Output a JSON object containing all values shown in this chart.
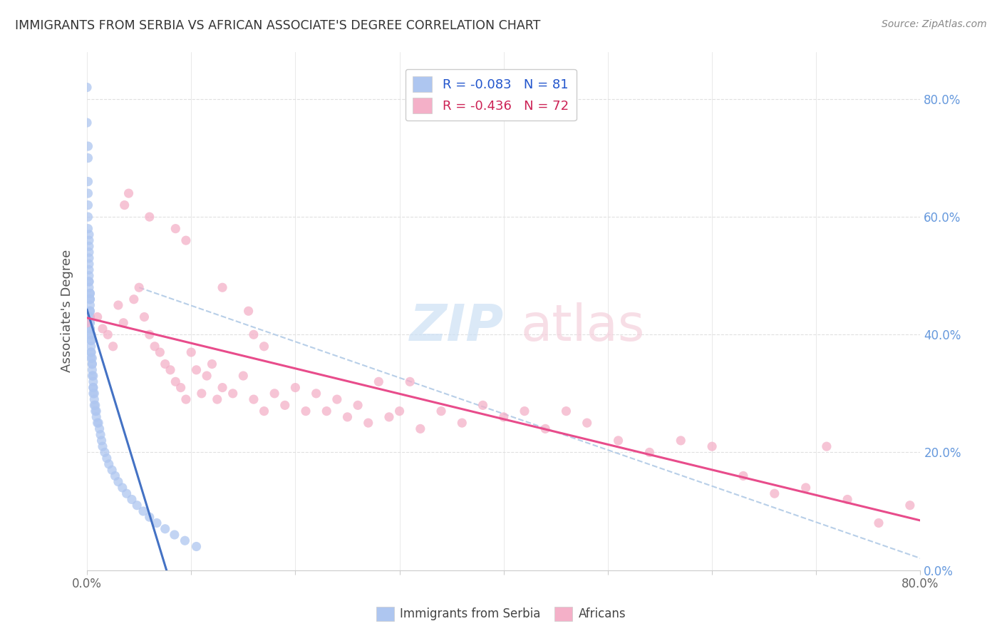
{
  "title": "IMMIGRANTS FROM SERBIA VS AFRICAN ASSOCIATE'S DEGREE CORRELATION CHART",
  "source": "Source: ZipAtlas.com",
  "ylabel": "Associate's Degree",
  "legend_r_labels": [
    "R = -0.083   N = 81",
    "R = -0.436   N = 72"
  ],
  "legend_bottom_labels": [
    "Immigrants from Serbia",
    "Africans"
  ],
  "serbia_scatter_color": "#aec6f0",
  "africa_scatter_color": "#f4b0c8",
  "serbia_line_color": "#4472c4",
  "africa_line_color": "#e84c8b",
  "dashed_line_color": "#b8cfe8",
  "watermark_zip_color": "#cce0f5",
  "watermark_atlas_color": "#f5d0dc",
  "legend_blue_color": "#2255cc",
  "legend_pink_color": "#cc2255",
  "right_tick_color": "#6699dd",
  "title_color": "#333333",
  "source_color": "#888888",
  "ylabel_color": "#555555",
  "grid_color": "#e0e0e0",
  "serbia_x": [
    0.0,
    0.0,
    0.001,
    0.001,
    0.001,
    0.001,
    0.001,
    0.001,
    0.001,
    0.002,
    0.002,
    0.002,
    0.002,
    0.002,
    0.002,
    0.002,
    0.002,
    0.002,
    0.002,
    0.002,
    0.003,
    0.003,
    0.003,
    0.003,
    0.003,
    0.003,
    0.003,
    0.003,
    0.003,
    0.003,
    0.003,
    0.003,
    0.003,
    0.003,
    0.004,
    0.004,
    0.004,
    0.004,
    0.004,
    0.004,
    0.004,
    0.005,
    0.005,
    0.005,
    0.005,
    0.005,
    0.006,
    0.006,
    0.006,
    0.006,
    0.006,
    0.007,
    0.007,
    0.007,
    0.008,
    0.008,
    0.009,
    0.009,
    0.01,
    0.011,
    0.012,
    0.013,
    0.014,
    0.015,
    0.017,
    0.019,
    0.021,
    0.024,
    0.027,
    0.03,
    0.034,
    0.038,
    0.043,
    0.048,
    0.054,
    0.06,
    0.067,
    0.075,
    0.084,
    0.094,
    0.105
  ],
  "serbia_y": [
    0.82,
    0.76,
    0.72,
    0.7,
    0.66,
    0.64,
    0.62,
    0.6,
    0.58,
    0.57,
    0.56,
    0.55,
    0.54,
    0.53,
    0.52,
    0.51,
    0.5,
    0.49,
    0.49,
    0.48,
    0.47,
    0.47,
    0.46,
    0.46,
    0.45,
    0.44,
    0.44,
    0.43,
    0.43,
    0.42,
    0.42,
    0.41,
    0.41,
    0.4,
    0.4,
    0.39,
    0.39,
    0.38,
    0.37,
    0.37,
    0.36,
    0.36,
    0.35,
    0.35,
    0.34,
    0.33,
    0.33,
    0.32,
    0.31,
    0.31,
    0.3,
    0.3,
    0.29,
    0.28,
    0.28,
    0.27,
    0.27,
    0.26,
    0.25,
    0.25,
    0.24,
    0.23,
    0.22,
    0.21,
    0.2,
    0.19,
    0.18,
    0.17,
    0.16,
    0.15,
    0.14,
    0.13,
    0.12,
    0.11,
    0.1,
    0.09,
    0.08,
    0.07,
    0.06,
    0.05,
    0.04
  ],
  "africa_x": [
    0.0,
    0.01,
    0.015,
    0.02,
    0.025,
    0.03,
    0.035,
    0.04,
    0.045,
    0.05,
    0.055,
    0.06,
    0.065,
    0.07,
    0.075,
    0.08,
    0.085,
    0.09,
    0.095,
    0.1,
    0.105,
    0.11,
    0.115,
    0.12,
    0.125,
    0.13,
    0.14,
    0.15,
    0.16,
    0.17,
    0.18,
    0.19,
    0.2,
    0.21,
    0.22,
    0.23,
    0.24,
    0.25,
    0.26,
    0.27,
    0.28,
    0.29,
    0.3,
    0.31,
    0.32,
    0.34,
    0.36,
    0.38,
    0.4,
    0.42,
    0.44,
    0.46,
    0.48,
    0.51,
    0.54,
    0.57,
    0.6,
    0.63,
    0.66,
    0.69,
    0.71,
    0.73,
    0.76,
    0.79,
    0.036,
    0.06,
    0.085,
    0.095,
    0.13,
    0.155,
    0.16,
    0.17
  ],
  "africa_y": [
    0.42,
    0.43,
    0.41,
    0.4,
    0.38,
    0.45,
    0.42,
    0.64,
    0.46,
    0.48,
    0.43,
    0.4,
    0.38,
    0.37,
    0.35,
    0.34,
    0.32,
    0.31,
    0.29,
    0.37,
    0.34,
    0.3,
    0.33,
    0.35,
    0.29,
    0.31,
    0.3,
    0.33,
    0.29,
    0.27,
    0.3,
    0.28,
    0.31,
    0.27,
    0.3,
    0.27,
    0.29,
    0.26,
    0.28,
    0.25,
    0.32,
    0.26,
    0.27,
    0.32,
    0.24,
    0.27,
    0.25,
    0.28,
    0.26,
    0.27,
    0.24,
    0.27,
    0.25,
    0.22,
    0.2,
    0.22,
    0.21,
    0.16,
    0.13,
    0.14,
    0.21,
    0.12,
    0.08,
    0.11,
    0.62,
    0.6,
    0.58,
    0.56,
    0.48,
    0.44,
    0.4,
    0.38
  ],
  "xlim": [
    0.0,
    0.8
  ],
  "ylim": [
    0.0,
    0.88
  ],
  "xtick_positions": [
    0.0,
    0.1,
    0.2,
    0.3,
    0.4,
    0.5,
    0.6,
    0.7,
    0.8
  ],
  "ytick_positions": [
    0.0,
    0.2,
    0.4,
    0.6,
    0.8
  ],
  "right_ytick_labels": [
    "0.0%",
    "20.0%",
    "40.0%",
    "60.0%",
    "80.0%"
  ],
  "background_color": "#ffffff"
}
